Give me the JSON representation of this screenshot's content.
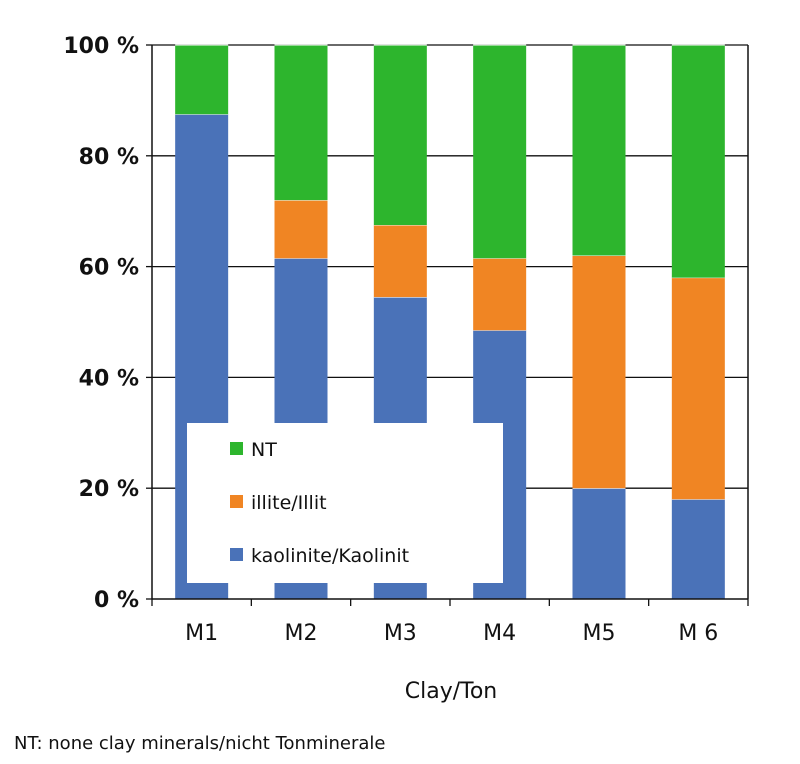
{
  "chart_data": {
    "type": "bar",
    "stacked": true,
    "categories": [
      "M1",
      "M2",
      "M3",
      "M4",
      "M5",
      "M 6"
    ],
    "series": [
      {
        "name": "kaolinite/Kaolinit",
        "color": "#4a72b8",
        "values": [
          87.5,
          61.5,
          54.5,
          48.5,
          20,
          18
        ]
      },
      {
        "name": "illite/Illit",
        "color": "#f08523",
        "values": [
          0,
          10.5,
          13,
          13,
          42,
          40
        ]
      },
      {
        "name": "NT",
        "color": "#2db52d",
        "values": [
          12.5,
          28,
          32.5,
          38.5,
          38,
          42
        ]
      }
    ],
    "yticks": [
      "0 %",
      "20 %",
      "40 %",
      "60 %",
      "80 %",
      "100 %"
    ],
    "ylim": [
      0,
      100
    ],
    "xlabel": "Clay/Ton",
    "ylabel": "",
    "grid": true,
    "legend": {
      "position": "bottom-left inside",
      "order": [
        "NT",
        "illite/Illit",
        "kaolinite/Kaolinit"
      ]
    },
    "footnote": "NT: none clay minerals/nicht Tonminerale"
  }
}
